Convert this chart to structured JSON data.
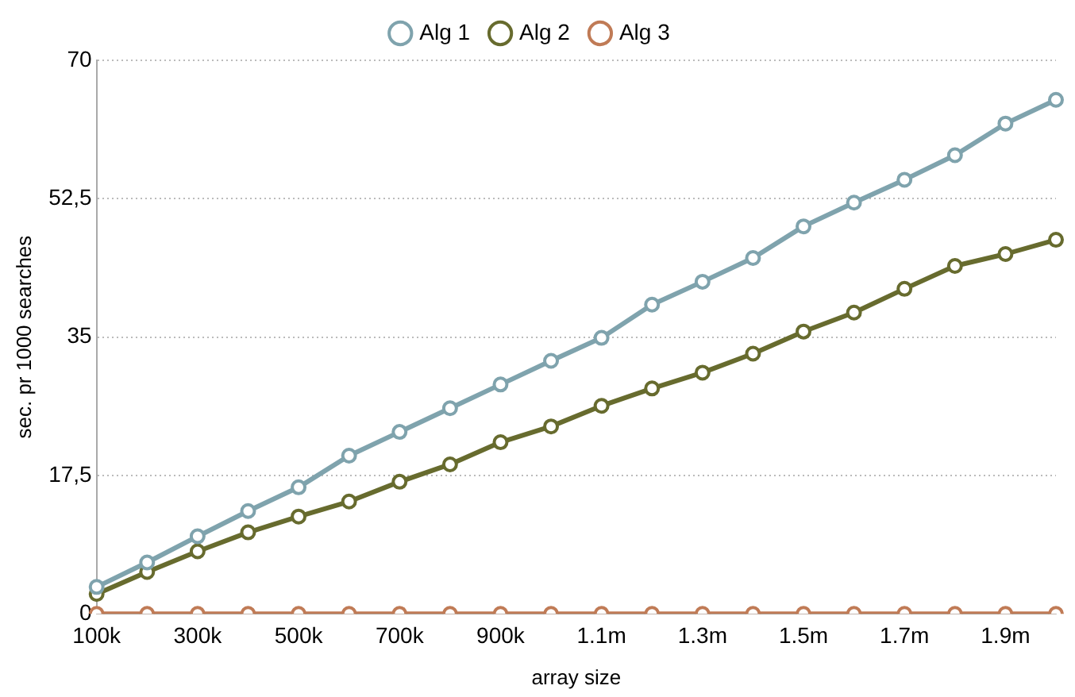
{
  "chart_data": {
    "type": "line",
    "xlabel": "array size",
    "ylabel": "sec. pr 1000 searches",
    "categories": [
      "100k",
      null,
      "300k",
      null,
      "500k",
      null,
      "700k",
      null,
      "900k",
      null,
      "1.1m",
      null,
      "1.3m",
      null,
      "1.5m",
      null,
      "1.7m",
      null,
      "1.9m",
      null
    ],
    "series": [
      {
        "name": "Alg 1",
        "color": "#7fa3ad",
        "values": [
          3.4,
          6.5,
          9.8,
          13,
          16,
          20,
          23,
          26,
          29,
          32,
          34.9,
          39.1,
          42,
          45,
          49,
          52,
          54.9,
          58,
          62,
          65
        ]
      },
      {
        "name": "Alg 2",
        "color": "#676b2e",
        "values": [
          2.5,
          5.3,
          7.9,
          10.3,
          12.3,
          14.2,
          16.7,
          18.9,
          21.7,
          23.7,
          26.3,
          28.5,
          30.5,
          32.9,
          35.7,
          38.1,
          41.1,
          44,
          45.5,
          47.3
        ]
      },
      {
        "name": "Alg 3",
        "color": "#c07b56",
        "values": [
          0,
          0,
          0,
          0,
          0,
          0,
          0,
          0,
          0,
          0,
          0,
          0,
          0,
          0,
          0,
          0,
          0,
          0,
          0,
          0
        ]
      }
    ],
    "ylim": [
      0,
      70
    ],
    "yticks": [
      0,
      {
        "value": 17.5,
        "label": "17,5"
      },
      35,
      {
        "value": 52.5,
        "label": "52,5"
      },
      70
    ],
    "grid": "y",
    "legend": "top",
    "marker": "circle",
    "line_style": "solid"
  }
}
